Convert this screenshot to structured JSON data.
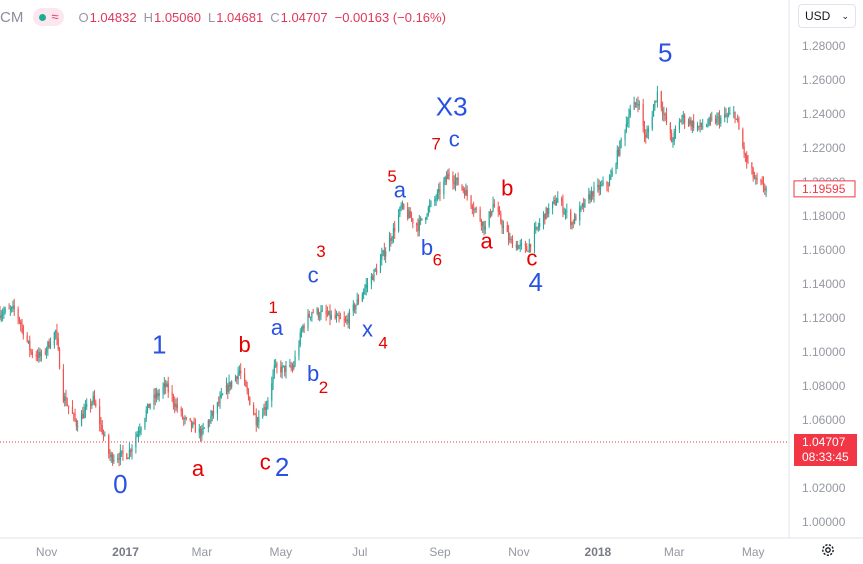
{
  "header": {
    "symbol": "CM",
    "ohlc": {
      "open_label": "O",
      "open": "1.04832",
      "high_label": "H",
      "high": "1.05060",
      "low_label": "L",
      "low": "1.04681",
      "close_label": "C",
      "close": "1.04707",
      "change": "−0.00163 (−0.16%)"
    },
    "indicator_icons": [
      "status-dot-icon",
      "approx-wave-icon"
    ]
  },
  "currency_selector": {
    "value": "USD",
    "icon": "chevron-down-icon"
  },
  "settings_icon": "gear-icon",
  "colors": {
    "up": "#26a69a",
    "down": "#ef5350",
    "label_blue": "#2952e3",
    "label_red": "#e60000",
    "price_tag": "#f23645",
    "axis_text": "#9598a1"
  },
  "chart_data": {
    "type": "candlestick",
    "title": "",
    "xlabel": "",
    "ylabel": "",
    "ylim": [
      0.99,
      1.29
    ],
    "x_range": [
      "2016-09-26",
      "2018-05-31"
    ],
    "y_ticks": [
      "1.28000",
      "1.26000",
      "1.24000",
      "1.22000",
      "1.20000",
      "1.18000",
      "1.16000",
      "1.14000",
      "1.12000",
      "1.10000",
      "1.08000",
      "1.06000",
      "1.04000",
      "1.02000",
      "1.00000"
    ],
    "x_ticks": [
      {
        "label": "Nov",
        "date": "2016-11-01"
      },
      {
        "label": "2017",
        "date": "2017-01-01"
      },
      {
        "label": "Mar",
        "date": "2017-03-01"
      },
      {
        "label": "May",
        "date": "2017-05-01"
      },
      {
        "label": "Jul",
        "date": "2017-07-01"
      },
      {
        "label": "Sep",
        "date": "2017-09-01"
      },
      {
        "label": "Nov",
        "date": "2017-11-01"
      },
      {
        "label": "2018",
        "date": "2018-01-01"
      },
      {
        "label": "Mar",
        "date": "2018-03-01"
      },
      {
        "label": "May",
        "date": "2018-05-01"
      }
    ],
    "grid": false,
    "price_path": [
      [
        "2016-09-26",
        1.123
      ],
      [
        "2016-10-08",
        1.125
      ],
      [
        "2016-10-20",
        1.1
      ],
      [
        "2016-10-28",
        1.097
      ],
      [
        "2016-11-08",
        1.112
      ],
      [
        "2016-11-14",
        1.074
      ],
      [
        "2016-11-24",
        1.058
      ],
      [
        "2016-12-07",
        1.072
      ],
      [
        "2016-12-20",
        1.038
      ],
      [
        "2017-01-03",
        1.04
      ],
      [
        "2017-01-20",
        1.07
      ],
      [
        "2017-02-01",
        1.08
      ],
      [
        "2017-02-15",
        1.06
      ],
      [
        "2017-03-01",
        1.052
      ],
      [
        "2017-03-20",
        1.078
      ],
      [
        "2017-03-30",
        1.089
      ],
      [
        "2017-04-12",
        1.06
      ],
      [
        "2017-04-20",
        1.069
      ],
      [
        "2017-04-26",
        1.09
      ],
      [
        "2017-05-10",
        1.09
      ],
      [
        "2017-05-18",
        1.115
      ],
      [
        "2017-05-25",
        1.124
      ],
      [
        "2017-06-08",
        1.121
      ],
      [
        "2017-06-20",
        1.117
      ],
      [
        "2017-07-03",
        1.135
      ],
      [
        "2017-07-15",
        1.15
      ],
      [
        "2017-07-28",
        1.173
      ],
      [
        "2017-08-02",
        1.185
      ],
      [
        "2017-08-15",
        1.174
      ],
      [
        "2017-08-22",
        1.183
      ],
      [
        "2017-08-31",
        1.193
      ],
      [
        "2017-09-08",
        1.205
      ],
      [
        "2017-09-20",
        1.195
      ],
      [
        "2017-10-06",
        1.173
      ],
      [
        "2017-10-12",
        1.187
      ],
      [
        "2017-10-25",
        1.165
      ],
      [
        "2017-11-07",
        1.16
      ],
      [
        "2017-11-20",
        1.18
      ],
      [
        "2017-12-01",
        1.19
      ],
      [
        "2017-12-12",
        1.176
      ],
      [
        "2017-12-28",
        1.194
      ],
      [
        "2018-01-10",
        1.2
      ],
      [
        "2018-01-25",
        1.24
      ],
      [
        "2018-02-01",
        1.248
      ],
      [
        "2018-02-07",
        1.225
      ],
      [
        "2018-02-16",
        1.253
      ],
      [
        "2018-02-27",
        1.224
      ],
      [
        "2018-03-07",
        1.238
      ],
      [
        "2018-03-20",
        1.232
      ],
      [
        "2018-04-01",
        1.236
      ],
      [
        "2018-04-17",
        1.24
      ],
      [
        "2018-04-25",
        1.214
      ],
      [
        "2018-05-03",
        1.2
      ],
      [
        "2018-05-11",
        1.196
      ]
    ],
    "last_price": {
      "value": "1.19595"
    },
    "reference_line": {
      "value": "1.04707",
      "countdown": "08:33:45",
      "style": "dotted"
    },
    "wave_labels": [
      {
        "text": "0",
        "date": "2016-12-28",
        "price": 1.017,
        "color": "blue",
        "size": "large"
      },
      {
        "text": "1",
        "date": "2017-01-27",
        "price": 1.099,
        "color": "blue",
        "size": "large"
      },
      {
        "text": "a",
        "date": "2017-02-26",
        "price": 1.027,
        "color": "red",
        "size": "med"
      },
      {
        "text": "b",
        "date": "2017-04-03",
        "price": 1.1,
        "color": "red",
        "size": "med"
      },
      {
        "text": "c",
        "date": "2017-04-19",
        "price": 1.031,
        "color": "red",
        "size": "med"
      },
      {
        "text": "2",
        "date": "2017-05-02",
        "price": 1.027,
        "color": "blue",
        "size": "large"
      },
      {
        "text": "1",
        "date": "2017-04-25",
        "price": 1.123,
        "color": "red",
        "size": "small"
      },
      {
        "text": "a",
        "date": "2017-04-28",
        "price": 1.11,
        "color": "blue",
        "size": "med"
      },
      {
        "text": "b",
        "date": "2017-05-26",
        "price": 1.083,
        "color": "blue",
        "size": "med"
      },
      {
        "text": "2",
        "date": "2017-06-03",
        "price": 1.076,
        "color": "red",
        "size": "small"
      },
      {
        "text": "c",
        "date": "2017-05-26",
        "price": 1.141,
        "color": "blue",
        "size": "med"
      },
      {
        "text": "3",
        "date": "2017-06-01",
        "price": 1.156,
        "color": "red",
        "size": "small"
      },
      {
        "text": "x",
        "date": "2017-07-07",
        "price": 1.109,
        "color": "blue",
        "size": "med"
      },
      {
        "text": "4",
        "date": "2017-07-19",
        "price": 1.102,
        "color": "red",
        "size": "small"
      },
      {
        "text": "5",
        "date": "2017-07-26",
        "price": 1.2,
        "color": "red",
        "size": "small"
      },
      {
        "text": "a",
        "date": "2017-08-01",
        "price": 1.191,
        "color": "blue",
        "size": "med"
      },
      {
        "text": "b",
        "date": "2017-08-22",
        "price": 1.157,
        "color": "blue",
        "size": "med"
      },
      {
        "text": "6",
        "date": "2017-08-30",
        "price": 1.151,
        "color": "red",
        "size": "small"
      },
      {
        "text": "X3",
        "date": "2017-09-10",
        "price": 1.239,
        "color": "blue",
        "size": "large"
      },
      {
        "text": "7",
        "date": "2017-08-29",
        "price": 1.219,
        "color": "red",
        "size": "small"
      },
      {
        "text": "c",
        "date": "2017-09-12",
        "price": 1.221,
        "color": "blue",
        "size": "med"
      },
      {
        "text": "a",
        "date": "2017-10-07",
        "price": 1.161,
        "color": "red",
        "size": "med"
      },
      {
        "text": "b",
        "date": "2017-10-23",
        "price": 1.192,
        "color": "red",
        "size": "med"
      },
      {
        "text": "c",
        "date": "2017-11-11",
        "price": 1.151,
        "color": "red",
        "size": "med"
      },
      {
        "text": "4",
        "date": "2017-11-14",
        "price": 1.136,
        "color": "blue",
        "size": "large"
      },
      {
        "text": "5",
        "date": "2018-02-22",
        "price": 1.271,
        "color": "blue",
        "size": "large"
      }
    ]
  }
}
